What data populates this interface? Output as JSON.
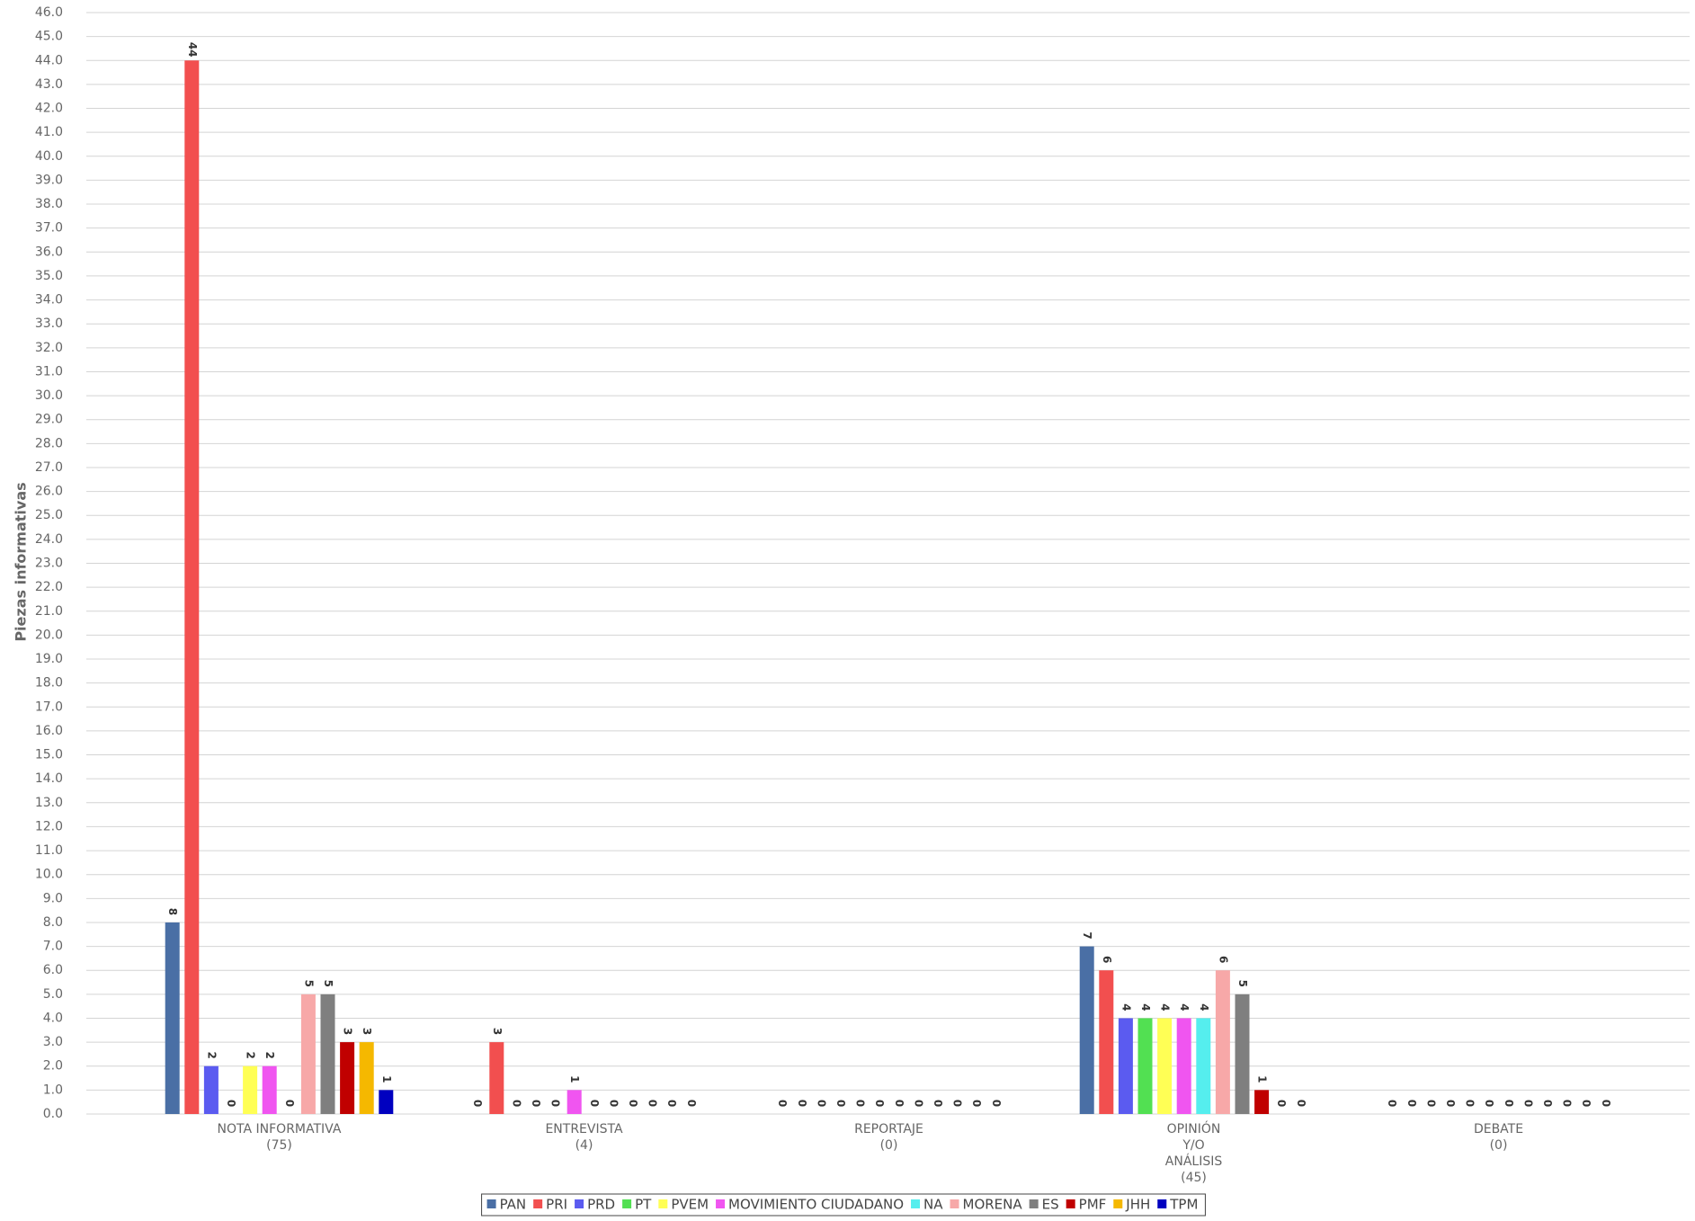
{
  "chart_data": {
    "type": "bar",
    "y_label": "Piezas informativas",
    "categories": [
      [
        "NOTA INFORMATIVA",
        "(75)"
      ],
      [
        "ENTREVISTA",
        "(4)"
      ],
      [
        "REPORTAJE",
        "(0)"
      ],
      [
        "OPINIÓN",
        "Y/O",
        "ANÁLISIS",
        "(45)"
      ],
      [
        "DEBATE",
        "(0)"
      ]
    ],
    "series": [
      {
        "name": "PAN",
        "color": "#4a6fa5",
        "values": [
          8,
          0,
          0,
          7,
          0
        ]
      },
      {
        "name": "PRI",
        "color": "#f24f4f",
        "values": [
          44,
          3,
          0,
          6,
          0
        ]
      },
      {
        "name": "PRD",
        "color": "#5b5bf0",
        "values": [
          2,
          0,
          0,
          4,
          0
        ]
      },
      {
        "name": "PT",
        "color": "#52e052",
        "values": [
          0,
          0,
          0,
          4,
          0
        ]
      },
      {
        "name": "PVEM",
        "color": "#ffff55",
        "values": [
          2,
          0,
          0,
          4,
          0
        ]
      },
      {
        "name": "MOVIMIENTO CIUDADANO",
        "color": "#f055f0",
        "values": [
          2,
          1,
          0,
          4,
          0
        ]
      },
      {
        "name": "NA",
        "color": "#55eeee",
        "values": [
          0,
          0,
          0,
          4,
          0
        ]
      },
      {
        "name": "MORENA",
        "color": "#f7a8a8",
        "values": [
          5,
          0,
          0,
          6,
          0
        ]
      },
      {
        "name": "ES",
        "color": "#7f7f7f",
        "values": [
          5,
          0,
          0,
          5,
          0
        ]
      },
      {
        "name": "PMF",
        "color": "#c00000",
        "values": [
          3,
          0,
          0,
          1,
          0
        ]
      },
      {
        "name": "JHH",
        "color": "#f5b800",
        "values": [
          3,
          0,
          0,
          0,
          0
        ]
      },
      {
        "name": "TPM",
        "color": "#0000c0",
        "values": [
          1,
          0,
          0,
          0,
          0
        ]
      }
    ],
    "ylim": [
      0,
      46
    ],
    "yticks": [
      {
        "value": 0,
        "label": "0.0"
      },
      {
        "value": 1,
        "label": "1.0"
      },
      {
        "value": 2,
        "label": "2.0"
      },
      {
        "value": 3,
        "label": "3.0"
      },
      {
        "value": 4,
        "label": "4.0"
      },
      {
        "value": 5,
        "label": "5.0"
      },
      {
        "value": 6,
        "label": "6.0"
      },
      {
        "value": 7,
        "label": "7.0"
      },
      {
        "value": 8,
        "label": "8.0"
      },
      {
        "value": 9,
        "label": "9.0"
      },
      {
        "value": 10,
        "label": "10.0"
      },
      {
        "value": 11,
        "label": "11.0"
      },
      {
        "value": 12,
        "label": "12.0"
      },
      {
        "value": 13,
        "label": "13.0"
      },
      {
        "value": 14,
        "label": "14.0"
      },
      {
        "value": 15,
        "label": "15.0"
      },
      {
        "value": 16,
        "label": "16.0"
      },
      {
        "value": 17,
        "label": "17.0"
      },
      {
        "value": 18,
        "label": "18.0"
      },
      {
        "value": 19,
        "label": "19.0"
      },
      {
        "value": 20,
        "label": "20.0"
      },
      {
        "value": 21,
        "label": "21.0"
      },
      {
        "value": 22,
        "label": "22.0"
      },
      {
        "value": 23,
        "label": "23.0"
      },
      {
        "value": 24,
        "label": "24.0"
      },
      {
        "value": 25,
        "label": "25.0"
      },
      {
        "value": 26,
        "label": "26.0"
      },
      {
        "value": 27,
        "label": "27.0"
      },
      {
        "value": 28,
        "label": "28.0"
      },
      {
        "value": 29,
        "label": "29.0"
      },
      {
        "value": 30,
        "label": "30.0"
      },
      {
        "value": 31,
        "label": "31.0"
      },
      {
        "value": 32,
        "label": "32.0"
      },
      {
        "value": 33,
        "label": "33.0"
      },
      {
        "value": 34,
        "label": "34.0"
      },
      {
        "value": 35,
        "label": "35.0"
      },
      {
        "value": 36,
        "label": "36.0"
      },
      {
        "value": 37,
        "label": "37.0"
      },
      {
        "value": 38,
        "label": "38.0"
      },
      {
        "value": 39,
        "label": "39.0"
      },
      {
        "value": 40,
        "label": "40.0"
      },
      {
        "value": 41,
        "label": "41.0"
      },
      {
        "value": 42,
        "label": "42.0"
      },
      {
        "value": 43,
        "label": "43.0"
      },
      {
        "value": 44,
        "label": "44.0"
      },
      {
        "value": 45,
        "label": "45.0"
      },
      {
        "value": 46,
        "label": "46.0"
      }
    ],
    "grid": true
  }
}
